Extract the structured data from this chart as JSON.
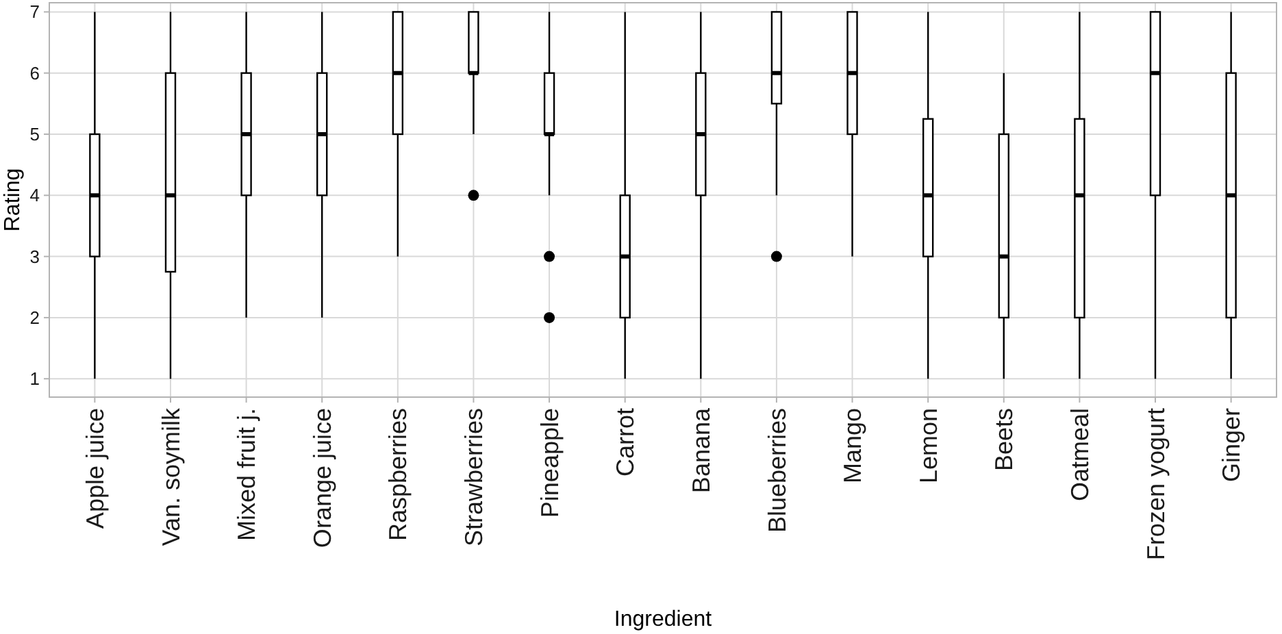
{
  "chart_data": {
    "type": "box",
    "xlabel": "Ingredient",
    "ylabel": "Rating",
    "categories": [
      "Apple juice",
      "Van. soymilk",
      "Mixed fruit j.",
      "Orange juice",
      "Raspberries",
      "Strawberries",
      "Pineapple",
      "Carrot",
      "Banana",
      "Blueberries",
      "Mango",
      "Lemon",
      "Beets",
      "Oatmeal",
      "Frozen yogurt",
      "Ginger"
    ],
    "boxes": [
      {
        "low": 1,
        "q1": 3,
        "median": 4,
        "q3": 5,
        "high": 7
      },
      {
        "low": 1,
        "q1": 2.75,
        "median": 4,
        "q3": 6,
        "high": 7
      },
      {
        "low": 2,
        "q1": 4,
        "median": 5,
        "q3": 6,
        "high": 7
      },
      {
        "low": 2,
        "q1": 4,
        "median": 5,
        "q3": 6,
        "high": 7
      },
      {
        "low": 3,
        "q1": 5,
        "median": 6,
        "q3": 7,
        "high": 7
      },
      {
        "low": 5,
        "q1": 6,
        "median": 6,
        "q3": 7,
        "high": 7,
        "outliers": [
          4
        ]
      },
      {
        "low": 4,
        "q1": 5,
        "median": 5,
        "q3": 6,
        "high": 7,
        "outliers": [
          3,
          2
        ]
      },
      {
        "low": 1,
        "q1": 2,
        "median": 3,
        "q3": 4,
        "high": 7
      },
      {
        "low": 1,
        "q1": 4,
        "median": 5,
        "q3": 6,
        "high": 7
      },
      {
        "low": 4,
        "q1": 5.5,
        "median": 6,
        "q3": 7,
        "high": 7,
        "outliers": [
          3
        ]
      },
      {
        "low": 3,
        "q1": 5,
        "median": 6,
        "q3": 7,
        "high": 7
      },
      {
        "low": 1,
        "q1": 3,
        "median": 4,
        "q3": 5.25,
        "high": 7
      },
      {
        "low": 1,
        "q1": 2,
        "median": 3,
        "q3": 5,
        "high": 6
      },
      {
        "low": 1,
        "q1": 2,
        "median": 4,
        "q3": 5.25,
        "high": 7
      },
      {
        "low": 1,
        "q1": 4,
        "median": 6,
        "q3": 7,
        "high": 7
      },
      {
        "low": 1,
        "q1": 2,
        "median": 4,
        "q3": 6,
        "high": 7
      }
    ],
    "ylim": [
      0.7,
      7.15
    ],
    "yticks": [
      1,
      2,
      3,
      4,
      5,
      6,
      7
    ],
    "grid": true
  }
}
